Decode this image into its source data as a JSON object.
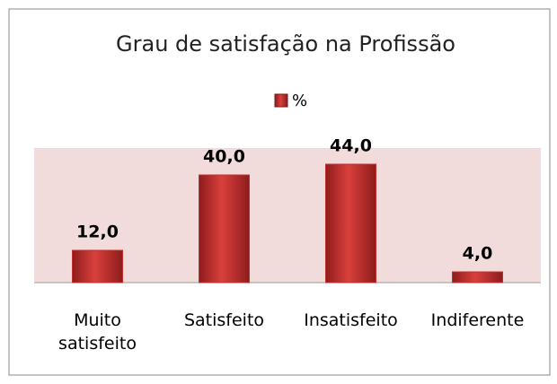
{
  "chart_data": {
    "type": "bar",
    "title": "Grau de satisfação na Profissão",
    "categories": [
      "Muito satisfeito",
      "Satisfeito",
      "Insatisfeito",
      "Indiferente"
    ],
    "series": [
      {
        "name": "%",
        "color": "#c0302e",
        "values": [
          12,
          40,
          44,
          4
        ],
        "value_labels": [
          "12,0",
          "40,0",
          "44,0",
          "4,0"
        ]
      }
    ],
    "ylim": [
      0,
      50
    ]
  }
}
